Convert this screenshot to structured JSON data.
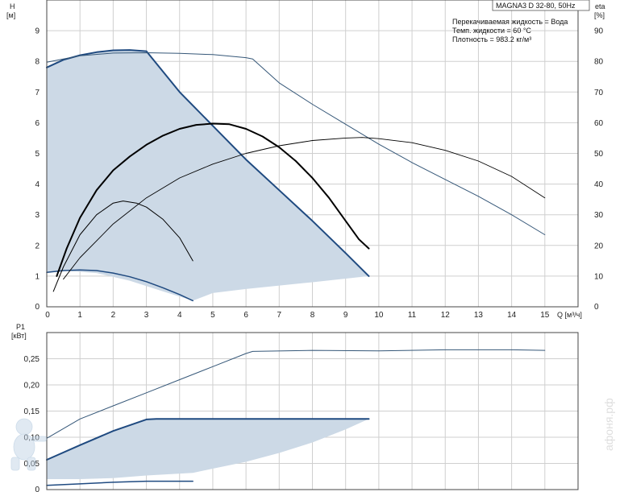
{
  "chart_data": [
    {
      "type": "line",
      "title": "MAGNA3 D 32-80, 50Hz",
      "info_lines": [
        "Перекачиваемая жидкость = Вода",
        "Темп. жидкости = 60 °C",
        "Плотность = 983.2 кг/м³"
      ],
      "ylabel_left": [
        "H",
        "[м]"
      ],
      "ylabel_right": [
        "eta",
        "[%]"
      ],
      "xlabel": "Q [м³/ч]",
      "xlim": [
        0,
        16
      ],
      "ylim": [
        0,
        10
      ],
      "ylim_right": [
        0,
        100
      ],
      "x_ticks": [
        "0",
        "1",
        "2",
        "3",
        "4",
        "5",
        "6",
        "7",
        "8",
        "9",
        "10",
        "11",
        "12",
        "13",
        "14",
        "15"
      ],
      "y_ticks": [
        "0",
        "1",
        "2",
        "3",
        "4",
        "5",
        "6",
        "7",
        "8",
        "9"
      ],
      "y_ticks_right": [
        "0",
        "10",
        "20",
        "30",
        "40",
        "50",
        "60",
        "70",
        "80",
        "90"
      ],
      "grid": true,
      "operating_area": {
        "color": "#ccd9e6",
        "upper": [
          [
            0,
            7.8
          ],
          [
            0.5,
            8.05
          ],
          [
            1,
            8.2
          ],
          [
            1.5,
            8.3
          ],
          [
            2,
            8.36
          ],
          [
            2.5,
            8.37
          ],
          [
            3,
            8.33
          ],
          [
            4,
            7.0
          ],
          [
            5,
            5.9
          ],
          [
            6,
            4.8
          ],
          [
            7,
            3.8
          ],
          [
            8,
            2.8
          ],
          [
            9,
            1.75
          ],
          [
            9.7,
            1.0
          ]
        ],
        "lower": [
          [
            9.7,
            1.0
          ],
          [
            8,
            0.8
          ],
          [
            6,
            0.58
          ],
          [
            5,
            0.45
          ],
          [
            4.4,
            0.2
          ],
          [
            3.5,
            0.5
          ],
          [
            2.5,
            0.85
          ],
          [
            1.5,
            1.1
          ],
          [
            0.5,
            1.18
          ],
          [
            0,
            1.12
          ]
        ]
      },
      "series": [
        {
          "color": "#1f4a80",
          "width": 2,
          "points": [
            [
              0,
              7.8
            ],
            [
              0.5,
              8.05
            ],
            [
              1,
              8.2
            ],
            [
              1.5,
              8.3
            ],
            [
              2,
              8.36
            ],
            [
              2.5,
              8.37
            ],
            [
              3,
              8.33
            ],
            [
              4,
              7.0
            ],
            [
              5,
              5.9
            ],
            [
              6,
              4.8
            ],
            [
              7,
              3.8
            ],
            [
              8,
              2.8
            ],
            [
              9,
              1.75
            ],
            [
              9.7,
              1.0
            ]
          ]
        },
        {
          "color": "#1f4a80",
          "width": 1.5,
          "points": [
            [
              0,
              1.12
            ],
            [
              0.5,
              1.18
            ],
            [
              1,
              1.2
            ],
            [
              1.5,
              1.18
            ],
            [
              2,
              1.1
            ],
            [
              2.5,
              0.98
            ],
            [
              3,
              0.82
            ],
            [
              3.5,
              0.62
            ],
            [
              4,
              0.4
            ],
            [
              4.4,
              0.2
            ]
          ]
        },
        {
          "color": "#355778",
          "width": 1,
          "points": [
            [
              0,
              7.97
            ],
            [
              1,
              8.18
            ],
            [
              2,
              8.27
            ],
            [
              3,
              8.28
            ],
            [
              4,
              8.26
            ],
            [
              5,
              8.22
            ],
            [
              6,
              8.12
            ],
            [
              6.2,
              8.08
            ],
            [
              7,
              7.3
            ],
            [
              8,
              6.6
            ],
            [
              9,
              5.95
            ],
            [
              10,
              5.3
            ],
            [
              11,
              4.7
            ],
            [
              12,
              4.15
            ],
            [
              13,
              3.6
            ],
            [
              14,
              3.0
            ],
            [
              15,
              2.35
            ]
          ]
        },
        {
          "color": "#000000",
          "width": 2,
          "points": [
            [
              0.3,
              1.0
            ],
            [
              0.6,
              1.9
            ],
            [
              1,
              2.9
            ],
            [
              1.5,
              3.8
            ],
            [
              2,
              4.45
            ],
            [
              2.5,
              4.9
            ],
            [
              3,
              5.28
            ],
            [
              3.5,
              5.58
            ],
            [
              4,
              5.8
            ],
            [
              4.5,
              5.93
            ],
            [
              5,
              5.97
            ],
            [
              5.5,
              5.95
            ],
            [
              6,
              5.8
            ],
            [
              6.5,
              5.55
            ],
            [
              7,
              5.2
            ],
            [
              7.5,
              4.75
            ],
            [
              8,
              4.2
            ],
            [
              8.5,
              3.55
            ],
            [
              9,
              2.8
            ],
            [
              9.4,
              2.2
            ],
            [
              9.7,
              1.9
            ]
          ]
        },
        {
          "color": "#000000",
          "width": 1,
          "points": [
            [
              0.2,
              0.5
            ],
            [
              0.5,
              1.3
            ],
            [
              1,
              2.35
            ],
            [
              1.5,
              3.0
            ],
            [
              2,
              3.38
            ],
            [
              2.3,
              3.45
            ],
            [
              2.7,
              3.38
            ],
            [
              3,
              3.25
            ],
            [
              3.5,
              2.85
            ],
            [
              4,
              2.25
            ],
            [
              4.4,
              1.5
            ]
          ]
        },
        {
          "color": "#000000",
          "width": 0.9,
          "points": [
            [
              0.5,
              0.9
            ],
            [
              1,
              1.6
            ],
            [
              2,
              2.7
            ],
            [
              3,
              3.55
            ],
            [
              4,
              4.2
            ],
            [
              5,
              4.65
            ],
            [
              6,
              5.0
            ],
            [
              7,
              5.25
            ],
            [
              8,
              5.42
            ],
            [
              9,
              5.5
            ],
            [
              9.5,
              5.52
            ],
            [
              10,
              5.48
            ],
            [
              11,
              5.35
            ],
            [
              12,
              5.1
            ],
            [
              13,
              4.75
            ],
            [
              14,
              4.25
            ],
            [
              15,
              3.55
            ]
          ]
        }
      ]
    },
    {
      "type": "line",
      "ylabel": [
        "P1",
        "[кВт]"
      ],
      "xlim": [
        0,
        16
      ],
      "ylim": [
        0,
        0.3
      ],
      "y_ticks": [
        "0",
        "0,05",
        "0,10",
        "0,15",
        "0,20",
        "0,25"
      ],
      "grid": true,
      "operating_area": {
        "color": "#ccd9e6",
        "upper": [
          [
            0,
            0.057
          ],
          [
            1,
            0.085
          ],
          [
            2,
            0.112
          ],
          [
            3,
            0.134
          ],
          [
            3.3,
            0.135
          ],
          [
            5,
            0.135
          ],
          [
            7,
            0.135
          ],
          [
            9.7,
            0.135
          ]
        ],
        "lower": [
          [
            9.7,
            0.135
          ],
          [
            9,
            0.115
          ],
          [
            8,
            0.09
          ],
          [
            7,
            0.07
          ],
          [
            6,
            0.053
          ],
          [
            5,
            0.04
          ],
          [
            4.4,
            0.032
          ],
          [
            3,
            0.027
          ],
          [
            2,
            0.022
          ],
          [
            1,
            0.02
          ],
          [
            0,
            0.02
          ]
        ]
      },
      "series": [
        {
          "color": "#1f4a80",
          "width": 2,
          "points": [
            [
              0,
              0.057
            ],
            [
              1,
              0.085
            ],
            [
              2,
              0.112
            ],
            [
              3,
              0.134
            ],
            [
              3.3,
              0.135
            ],
            [
              5,
              0.135
            ],
            [
              7,
              0.135
            ],
            [
              9.7,
              0.135
            ]
          ]
        },
        {
          "color": "#1f4a80",
          "width": 1.5,
          "points": [
            [
              0,
              0.008
            ],
            [
              1,
              0.011
            ],
            [
              2,
              0.014
            ],
            [
              3,
              0.016
            ],
            [
              4.4,
              0.016
            ]
          ]
        },
        {
          "color": "#355778",
          "width": 1,
          "points": [
            [
              0,
              0.098
            ],
            [
              1,
              0.135
            ],
            [
              2,
              0.16
            ],
            [
              3,
              0.185
            ],
            [
              4,
              0.21
            ],
            [
              5,
              0.235
            ],
            [
              6,
              0.26
            ],
            [
              6.2,
              0.264
            ],
            [
              8,
              0.266
            ],
            [
              10,
              0.265
            ],
            [
              12,
              0.267
            ],
            [
              14,
              0.267
            ],
            [
              15,
              0.266
            ]
          ]
        }
      ]
    }
  ],
  "watermark": "афоня.рф"
}
